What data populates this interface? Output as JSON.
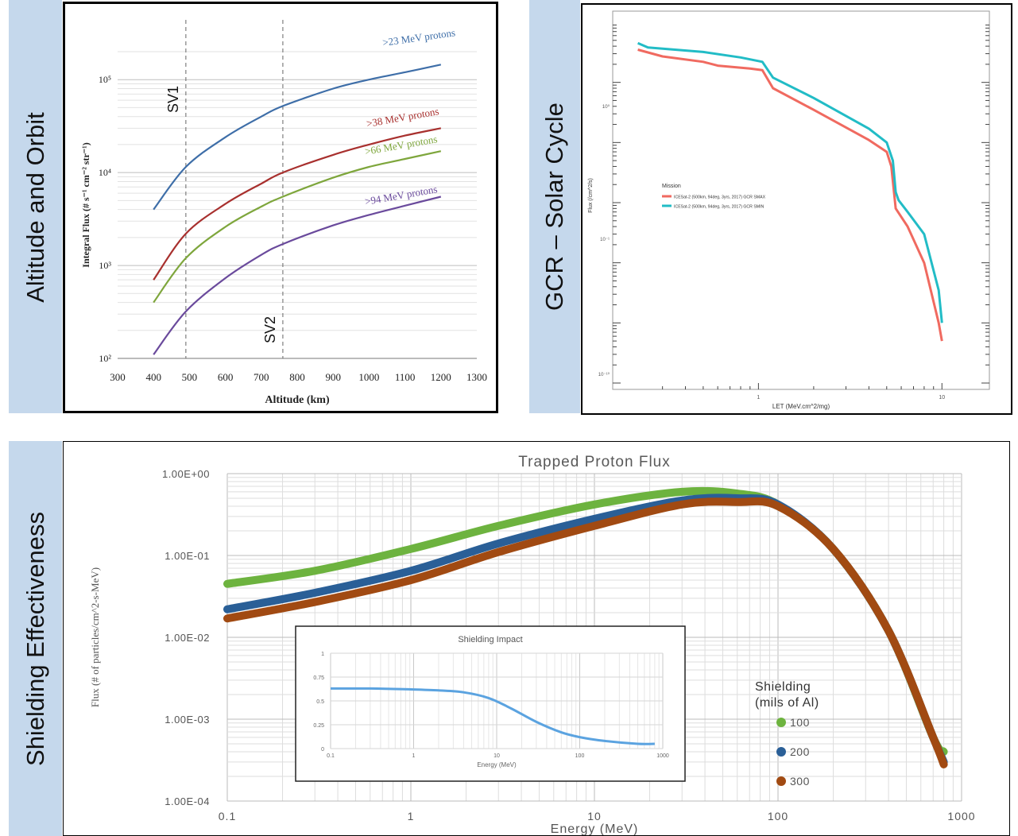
{
  "sections": {
    "altitude": "Altitude and Orbit",
    "gcr": "GCR – Solar Cycle",
    "shielding": "Shielding Effectiveness"
  },
  "colors": {
    "band": "#c5d8ec",
    "p23": "#3e6ea8",
    "p38": "#a8302e",
    "p66": "#7ea63c",
    "p94": "#6a4a9c",
    "smax": "#f06a60",
    "smin": "#22bcc6",
    "s100": "#6db33f",
    "s200": "#2a5f97",
    "s300": "#a14a12",
    "inset": "#5ba3e0"
  },
  "chart_data": [
    {
      "type": "line",
      "xlabel": "Altitude (km)",
      "ylabel": "Integral Flux (# s⁻¹ cm⁻² str⁻¹)",
      "x_ticks": [
        "300",
        "400",
        "500",
        "600",
        "700",
        "800",
        "900",
        "1000",
        "1100",
        "1200",
        "1300"
      ],
      "y_ticks": [
        "10²",
        "10³",
        "10⁴",
        "10⁵"
      ],
      "xlim": [
        300,
        1300
      ],
      "ylim": [
        100,
        200000
      ],
      "y_scale": "log",
      "annotations": [
        {
          "text": "SV1",
          "x": 490
        },
        {
          "text": "SV2",
          "x": 760
        }
      ],
      "x": [
        400,
        490,
        600,
        700,
        760,
        900,
        1000,
        1100,
        1200
      ],
      "series": [
        {
          "name": ">23 MeV protons",
          "values": [
            4000,
            11500,
            24000,
            40000,
            52000,
            80000,
            100000,
            120000,
            145000
          ]
        },
        {
          "name": ">38 MeV protons",
          "values": [
            700,
            2200,
            4600,
            7600,
            10000,
            15500,
            20000,
            25000,
            30000
          ]
        },
        {
          "name": ">66 MeV protons",
          "values": [
            400,
            1200,
            2600,
            4300,
            5500,
            8800,
            11500,
            14000,
            17000
          ]
        },
        {
          "name": ">94 MeV protons",
          "values": [
            110,
            320,
            730,
            1300,
            1700,
            2700,
            3500,
            4400,
            5500
          ]
        }
      ]
    },
    {
      "type": "line",
      "xlabel": "LET (MeV.cm^2/mg)",
      "ylabel": "Flux (/cm^2/s)",
      "x_ticks": [
        "1",
        "10"
      ],
      "y_ticks": [
        "10⁰",
        "10⁻¹",
        "10⁻¹⁰"
      ],
      "legend_title": "Mission",
      "legend_position": "middle-left",
      "x_scale": "log",
      "y_scale": "log",
      "series": [
        {
          "name": "ICESat-2 (500km, 94deg, 3yrs, 2017) GCR SMAX",
          "x": [
            0.22,
            0.3,
            0.5,
            0.6,
            0.9,
            1.05,
            1.2,
            2,
            4,
            5,
            5.3,
            5.6,
            6.5,
            8,
            9.6,
            10
          ],
          "values": [
            3.5,
            2.7,
            2.2,
            1.9,
            1.7,
            1.6,
            0.8,
            0.35,
            0.11,
            0.07,
            0.04,
            0.008,
            0.004,
            0.001,
            0.0001,
            5e-05
          ]
        },
        {
          "name": "ICESat-2 (500km, 94deg, 3yrs, 2017) GCR SMIN",
          "x": [
            0.22,
            0.25,
            0.5,
            0.8,
            1.05,
            1.2,
            2,
            4,
            5,
            5.4,
            5.6,
            5.8,
            6.5,
            8,
            9.6,
            10
          ],
          "values": [
            4.5,
            3.8,
            3.2,
            2.6,
            2.2,
            1.2,
            0.55,
            0.17,
            0.1,
            0.05,
            0.015,
            0.011,
            0.007,
            0.003,
            0.00035,
            0.0001
          ]
        }
      ]
    },
    {
      "type": "scatter",
      "title": "Trapped Proton Flux",
      "xlabel": "Energy (MeV)",
      "ylabel": "Flux (# of particles/cm^2-s-MeV)",
      "x_ticks": [
        "0.1",
        "1",
        "10",
        "100",
        "1000"
      ],
      "y_ticks": [
        "1.00E+00",
        "1.00E-01",
        "1.00E-02",
        "1.00E-03",
        "1.00E-04"
      ],
      "xlim": [
        0.1,
        1000
      ],
      "ylim": [
        0.0001,
        1
      ],
      "x_scale": "log",
      "y_scale": "log",
      "legend_title": "Shielding (mils of Al)",
      "legend_title_lines": [
        "Shielding",
        "(mils of Al)"
      ],
      "legend_position": "right",
      "x": [
        0.1,
        0.3,
        1,
        3,
        10,
        30,
        60,
        100,
        200,
        400,
        700,
        800
      ],
      "series": [
        {
          "name": "100",
          "values": [
            0.045,
            0.065,
            0.12,
            0.23,
            0.42,
            0.6,
            0.57,
            0.42,
            0.12,
            0.012,
            0.0006,
            0.0004
          ]
        },
        {
          "name": "200",
          "values": [
            0.022,
            0.035,
            0.065,
            0.14,
            0.28,
            0.47,
            0.5,
            0.42,
            0.12,
            0.012,
            0.0006,
            0.0003
          ]
        },
        {
          "name": "300",
          "values": [
            0.017,
            0.027,
            0.05,
            0.11,
            0.23,
            0.42,
            0.45,
            0.4,
            0.12,
            0.012,
            0.0006,
            0.00028
          ]
        }
      ]
    },
    {
      "type": "line",
      "title": "Shielding Impact",
      "xlabel": "Energy (MeV)",
      "x_ticks": [
        "0.1",
        "1",
        "10",
        "100",
        "1000"
      ],
      "y_ticks": [
        "0",
        "0.25",
        "0.5",
        "0.75",
        "1"
      ],
      "xlim": [
        0.1,
        1000
      ],
      "ylim": [
        0,
        1
      ],
      "x_scale": "log",
      "x": [
        0.1,
        0.3,
        1,
        2,
        4,
        8,
        15,
        30,
        60,
        100,
        200,
        500,
        800
      ],
      "series": [
        {
          "values": [
            0.63,
            0.63,
            0.62,
            0.61,
            0.59,
            0.53,
            0.42,
            0.28,
            0.17,
            0.12,
            0.08,
            0.05,
            0.05
          ]
        }
      ]
    }
  ]
}
